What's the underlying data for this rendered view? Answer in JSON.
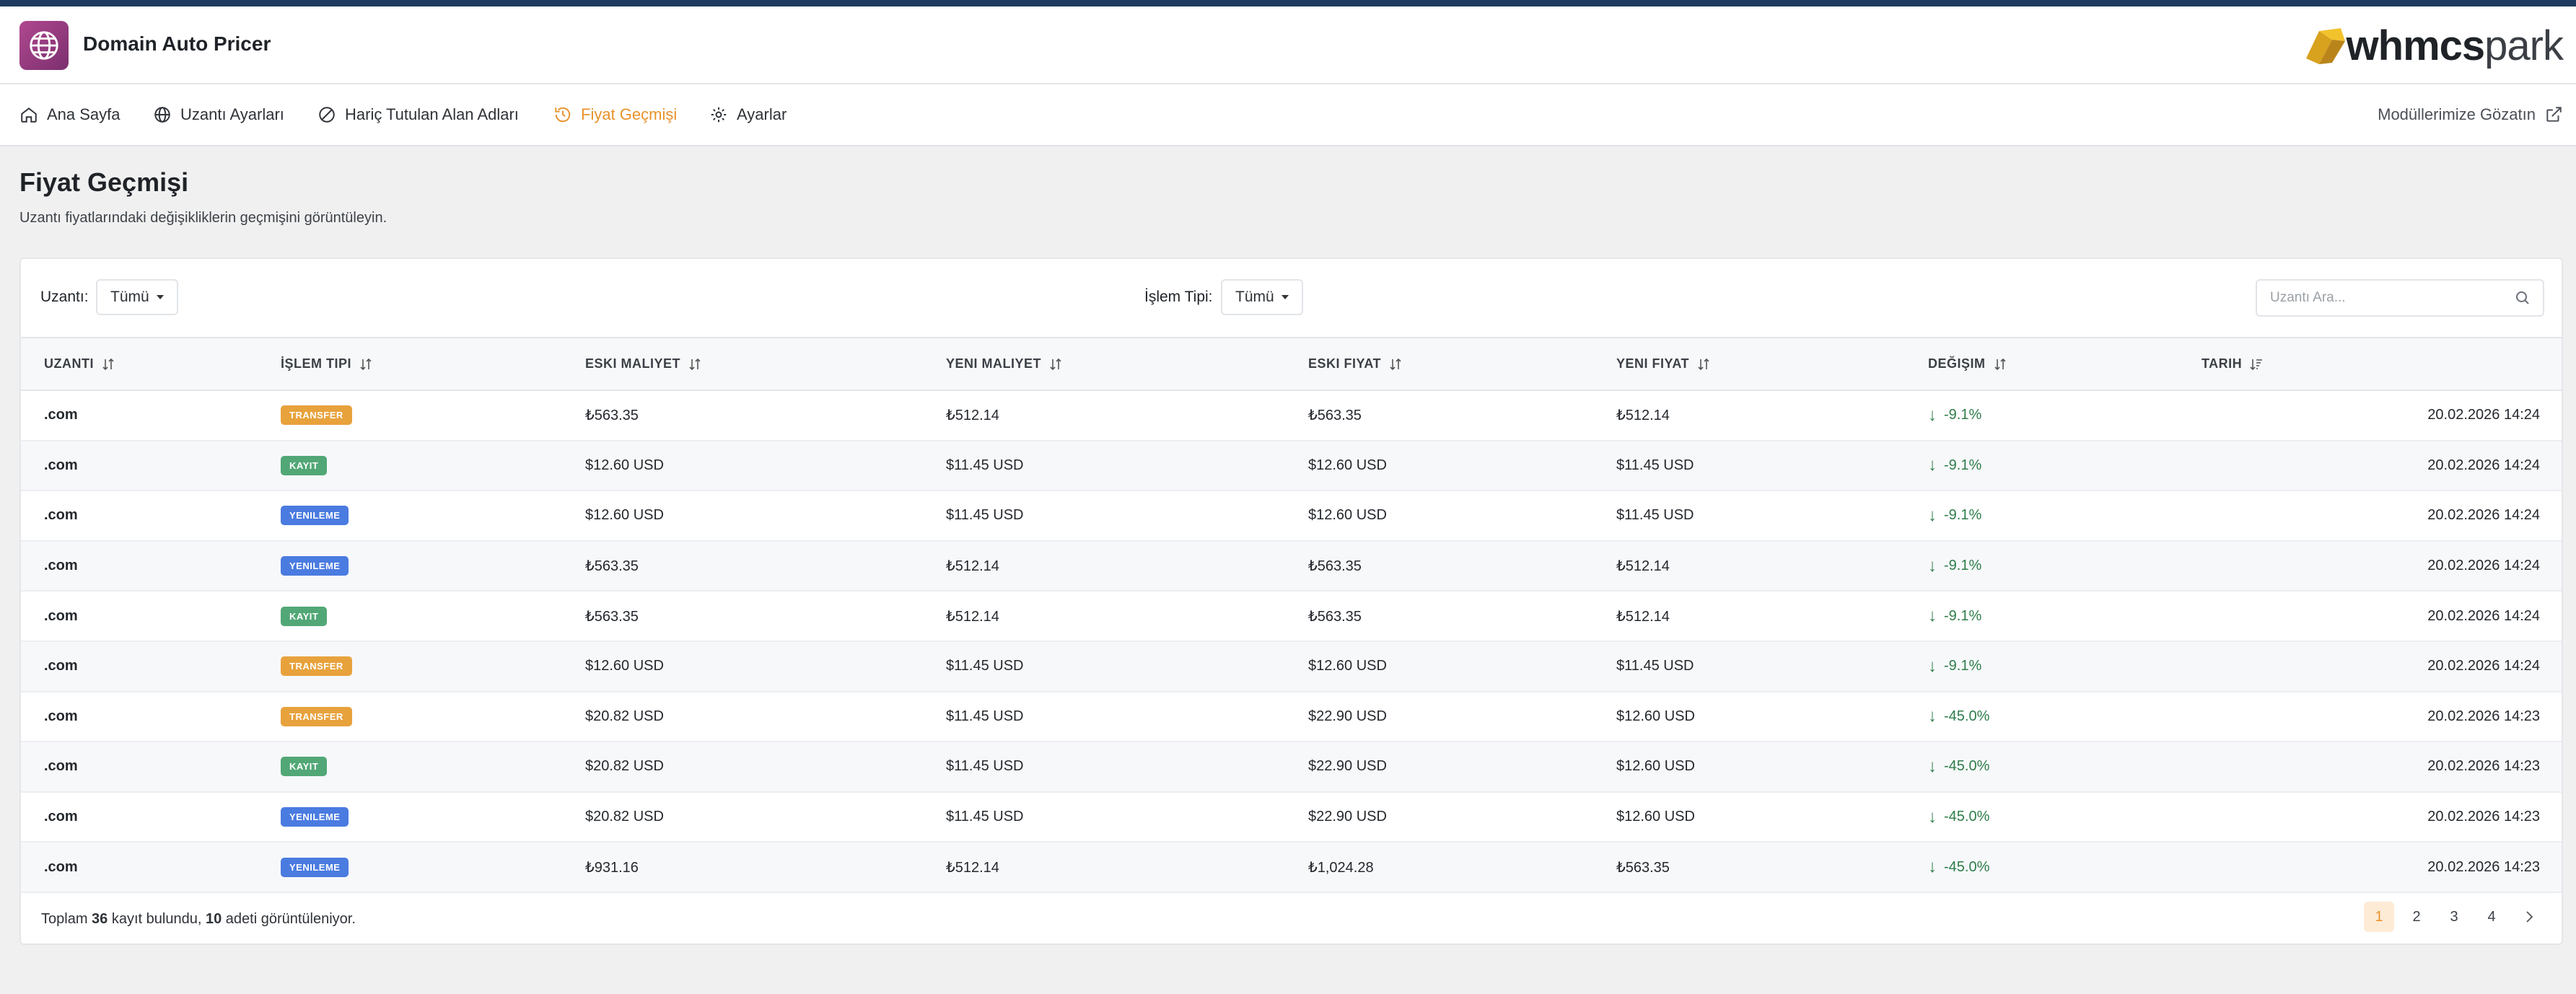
{
  "app": {
    "title": "Domain Auto Pricer",
    "brand_bold": "whmcs",
    "brand_light": "park"
  },
  "nav": {
    "items": [
      {
        "label": "Ana Sayfa",
        "icon": "home-icon"
      },
      {
        "label": "Uzantı Ayarları",
        "icon": "globe-icon"
      },
      {
        "label": "Hariç Tutulan Alan Adları",
        "icon": "ban-icon"
      },
      {
        "label": "Fiyat Geçmişi",
        "icon": "history-icon",
        "active": true
      },
      {
        "label": "Ayarlar",
        "icon": "gear-icon"
      }
    ],
    "right_link": "Modüllerimize Gözatın"
  },
  "page": {
    "title": "Fiyat Geçmişi",
    "subtitle": "Uzantı fiyatlarındaki değişikliklerin geçmişini görüntüleyin."
  },
  "filters": {
    "extension_label": "Uzantı:",
    "extension_value": "Tümü",
    "type_label": "İşlem Tipi:",
    "type_value": "Tümü",
    "search_placeholder": "Uzantı Ara..."
  },
  "table": {
    "headers": [
      "UZANTI",
      "İŞLEM TIPI",
      "ESKI MALIYET",
      "YENI MALIYET",
      "ESKI FIYAT",
      "YENI FIYAT",
      "DEĞIŞIM",
      "TARIH"
    ],
    "rows": [
      {
        "ext": ".com",
        "type": "TRANSFER",
        "type_class": "transfer",
        "old_cost": "₺563.35",
        "new_cost": "₺512.14",
        "old_price": "₺563.35",
        "new_price": "₺512.14",
        "change": "-9.1%",
        "date": "20.02.2026 14:24"
      },
      {
        "ext": ".com",
        "type": "KAYIT",
        "type_class": "kayit",
        "old_cost": "$12.60 USD",
        "new_cost": "$11.45 USD",
        "old_price": "$12.60 USD",
        "new_price": "$11.45 USD",
        "change": "-9.1%",
        "date": "20.02.2026 14:24"
      },
      {
        "ext": ".com",
        "type": "YENILEME",
        "type_class": "yenileme",
        "old_cost": "$12.60 USD",
        "new_cost": "$11.45 USD",
        "old_price": "$12.60 USD",
        "new_price": "$11.45 USD",
        "change": "-9.1%",
        "date": "20.02.2026 14:24"
      },
      {
        "ext": ".com",
        "type": "YENILEME",
        "type_class": "yenileme",
        "old_cost": "₺563.35",
        "new_cost": "₺512.14",
        "old_price": "₺563.35",
        "new_price": "₺512.14",
        "change": "-9.1%",
        "date": "20.02.2026 14:24"
      },
      {
        "ext": ".com",
        "type": "KAYIT",
        "type_class": "kayit",
        "old_cost": "₺563.35",
        "new_cost": "₺512.14",
        "old_price": "₺563.35",
        "new_price": "₺512.14",
        "change": "-9.1%",
        "date": "20.02.2026 14:24"
      },
      {
        "ext": ".com",
        "type": "TRANSFER",
        "type_class": "transfer",
        "old_cost": "$12.60 USD",
        "new_cost": "$11.45 USD",
        "old_price": "$12.60 USD",
        "new_price": "$11.45 USD",
        "change": "-9.1%",
        "date": "20.02.2026 14:24"
      },
      {
        "ext": ".com",
        "type": "TRANSFER",
        "type_class": "transfer",
        "old_cost": "$20.82 USD",
        "new_cost": "$11.45 USD",
        "old_price": "$22.90 USD",
        "new_price": "$12.60 USD",
        "change": "-45.0%",
        "date": "20.02.2026 14:23"
      },
      {
        "ext": ".com",
        "type": "KAYIT",
        "type_class": "kayit",
        "old_cost": "$20.82 USD",
        "new_cost": "$11.45 USD",
        "old_price": "$22.90 USD",
        "new_price": "$12.60 USD",
        "change": "-45.0%",
        "date": "20.02.2026 14:23"
      },
      {
        "ext": ".com",
        "type": "YENILEME",
        "type_class": "yenileme",
        "old_cost": "$20.82 USD",
        "new_cost": "$11.45 USD",
        "old_price": "$22.90 USD",
        "new_price": "$12.60 USD",
        "change": "-45.0%",
        "date": "20.02.2026 14:23"
      },
      {
        "ext": ".com",
        "type": "YENILEME",
        "type_class": "yenileme",
        "old_cost": "₺931.16",
        "new_cost": "₺512.14",
        "old_price": "₺1,024.28",
        "new_price": "₺563.35",
        "change": "-45.0%",
        "date": "20.02.2026 14:23"
      }
    ]
  },
  "footer": {
    "prefix": "Toplam",
    "total": "36",
    "mid": "kayıt bulundu,",
    "shown": "10",
    "suffix": "adeti görüntüleniyor."
  },
  "pagination": {
    "pages": [
      "1",
      "2",
      "3",
      "4"
    ],
    "current": "1"
  },
  "colors": {
    "accent": "#e8922b",
    "transfer": "#e8a23c",
    "kayit": "#52a776",
    "yenileme": "#4a7be0",
    "down": "#2e7d4a"
  }
}
